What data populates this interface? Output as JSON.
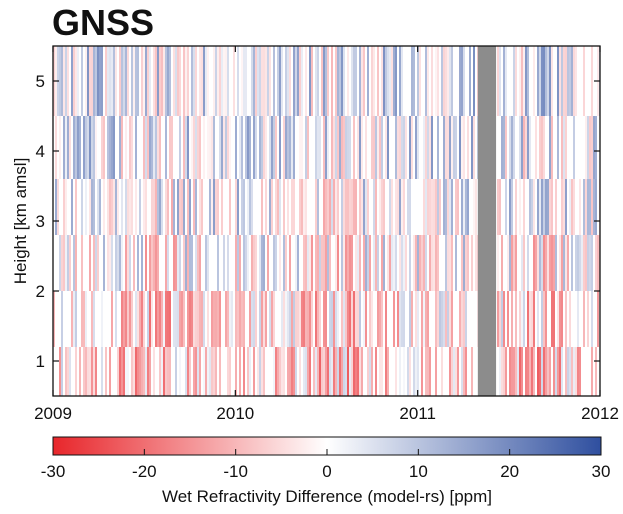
{
  "title": "GNSS",
  "chart_data": {
    "type": "heatmap",
    "title": "GNSS",
    "xlabel": "",
    "ylabel": "Height [km amsl]",
    "x_ticks": [
      "2009",
      "2010",
      "2011",
      "2012"
    ],
    "x_range": [
      2009,
      2012
    ],
    "y_ticks": [
      1,
      2,
      3,
      4,
      5
    ],
    "y_range": [
      0.5,
      5.5
    ],
    "missing_data_band": [
      2011.33,
      2011.43
    ],
    "colorbar": {
      "label": "Wet Refractivity Difference (model-rs) [ppm]",
      "ticks": [
        -30,
        -20,
        -10,
        0,
        10,
        20,
        30
      ],
      "range": [
        -30,
        30
      ],
      "colors": {
        "negative": "#e8262b",
        "zero": "#ffffff",
        "positive": "#2f4f9f"
      }
    },
    "pattern": {
      "low_levels": "negative differences (red) dominant below ~2.5 km, strongest 2009.3-2009.8, 2010.3-2010.8, 2011.5-2011.8",
      "high_levels": "mostly near zero with weak positive (blue) streaks above ~3 km"
    },
    "grid": false
  }
}
